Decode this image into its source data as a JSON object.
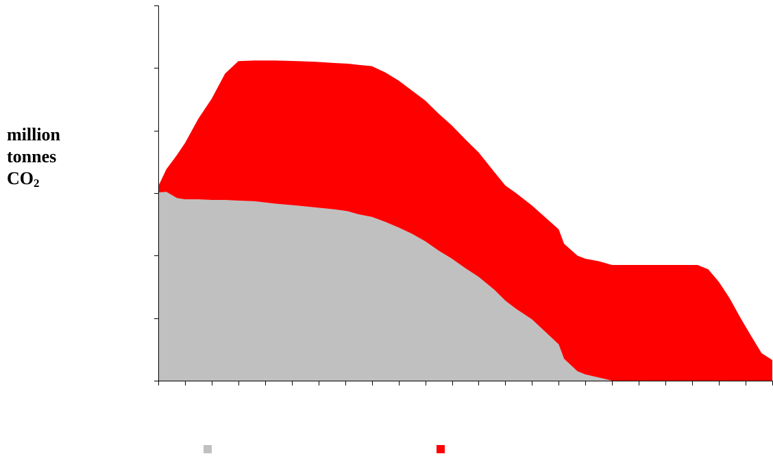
{
  "chart_data": {
    "type": "area",
    "stacked": true,
    "title": "",
    "xlabel": "",
    "ylabel": {
      "line1": "million",
      "line2": "tonnes",
      "line3_base": "CO",
      "line3_sub": "2"
    },
    "xlim": [
      0,
      23
    ],
    "ylim": [
      0,
      6
    ],
    "x_ticks": 23,
    "y_ticks": 6,
    "grid": false,
    "legend": "bottom",
    "x": [
      0,
      0.3,
      0.7,
      1,
      1.5,
      2,
      2.5,
      3,
      3.6,
      4.4,
      5.2,
      5.9,
      6.6,
      7.1,
      7.5,
      8,
      8.5,
      9,
      9.5,
      10,
      10.5,
      11,
      11.5,
      12,
      12.6,
      13,
      13.4,
      14,
      14.5,
      15,
      15.2,
      15.7,
      16,
      16.5,
      17,
      17.5,
      18,
      18.5,
      19,
      19.5,
      20,
      20.2,
      20.6,
      21,
      21.4,
      21.8,
      22.2,
      22.6,
      23
    ],
    "series": [
      {
        "color": "#c0c0c0",
        "values": [
          3.01,
          3.02,
          2.92,
          2.9,
          2.9,
          2.89,
          2.89,
          2.88,
          2.87,
          2.83,
          2.8,
          2.77,
          2.74,
          2.71,
          2.66,
          2.62,
          2.54,
          2.45,
          2.35,
          2.23,
          2.08,
          1.95,
          1.8,
          1.66,
          1.45,
          1.28,
          1.15,
          0.98,
          0.78,
          0.58,
          0.35,
          0.15,
          0.1,
          0.05,
          0,
          0,
          0,
          0,
          0,
          0,
          0,
          0,
          0,
          0,
          0,
          0,
          0,
          0,
          0
        ]
      },
      {
        "color": "#ff0000",
        "values": [
          0.1,
          0.36,
          0.69,
          0.9,
          1.29,
          1.62,
          2.02,
          2.23,
          2.25,
          2.29,
          2.31,
          2.33,
          2.34,
          2.36,
          2.39,
          2.41,
          2.39,
          2.35,
          2.29,
          2.25,
          2.19,
          2.13,
          2.06,
          1.99,
          1.88,
          1.84,
          1.85,
          1.82,
          1.83,
          1.84,
          1.84,
          1.85,
          1.85,
          1.86,
          1.85,
          1.85,
          1.85,
          1.85,
          1.85,
          1.85,
          1.85,
          1.85,
          1.78,
          1.58,
          1.32,
          1.01,
          0.72,
          0.44,
          0.33
        ]
      }
    ]
  }
}
